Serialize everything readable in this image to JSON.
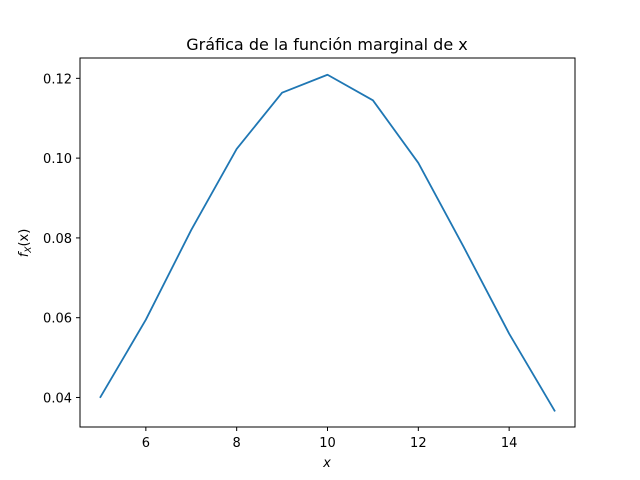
{
  "chart_data": {
    "type": "line",
    "title": "Gráfica de la función marginal de x",
    "xlabel": "x",
    "ylabel_main": "f",
    "ylabel_sub": "X",
    "ylabel_arg": "(x)",
    "xlim": [
      4.55,
      15.45
    ],
    "ylim": [
      0.0326,
      0.1251
    ],
    "xticks": [
      6,
      8,
      10,
      12,
      14
    ],
    "xtick_labels": [
      "6",
      "8",
      "10",
      "12",
      "14"
    ],
    "yticks": [
      0.04,
      0.06,
      0.08,
      0.1,
      0.12
    ],
    "ytick_labels": [
      "0.04",
      "0.06",
      "0.08",
      "0.10",
      "0.12"
    ],
    "grid": false,
    "line_color": "#1f77b4",
    "series": [
      {
        "x": [
          5,
          6,
          7,
          8,
          9,
          10,
          11,
          12,
          13,
          14,
          15
        ],
        "y": [
          0.0401,
          0.0595,
          0.082,
          0.1023,
          0.1164,
          0.1209,
          0.1145,
          0.0988,
          0.0777,
          0.056,
          0.0367
        ]
      }
    ]
  }
}
